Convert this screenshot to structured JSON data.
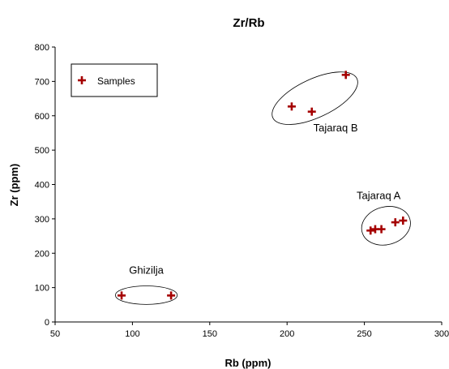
{
  "chart_data": {
    "type": "scatter",
    "title": "Zr/Rb",
    "xlabel": "Rb (ppm)",
    "ylabel": "Zr (ppm)",
    "xlim": [
      50,
      300
    ],
    "ylim": [
      0,
      800
    ],
    "xticks": [
      50,
      100,
      150,
      200,
      250,
      300
    ],
    "yticks": [
      0,
      100,
      200,
      300,
      400,
      500,
      600,
      700,
      800
    ],
    "grid": false,
    "legend": {
      "position": "top-left",
      "entries": [
        "Samples"
      ]
    },
    "series": [
      {
        "name": "Samples",
        "color": "#a50000",
        "marker": "plus",
        "points": [
          {
            "x": 93,
            "y": 77
          },
          {
            "x": 125,
            "y": 77
          },
          {
            "x": 203,
            "y": 627
          },
          {
            "x": 216,
            "y": 612
          },
          {
            "x": 238,
            "y": 719
          },
          {
            "x": 254,
            "y": 266
          },
          {
            "x": 257,
            "y": 270
          },
          {
            "x": 261,
            "y": 270
          },
          {
            "x": 270,
            "y": 290
          },
          {
            "x": 275,
            "y": 295
          }
        ]
      }
    ],
    "groups": [
      {
        "label": "Ghizilja",
        "cx": 109,
        "cy": 78,
        "rx": 20,
        "ry": 27,
        "angle": 0,
        "label_x": 109,
        "label_y": 140,
        "anchor": "middle"
      },
      {
        "label": "Tajaraq B",
        "cx": 218,
        "cy": 651,
        "rx": 30,
        "ry": 56,
        "angle": -25,
        "label_x": 217,
        "label_y": 555,
        "anchor": "start"
      },
      {
        "label": "Tajaraq A",
        "cx": 264,
        "cy": 280,
        "rx": 16,
        "ry": 55,
        "angle": -15,
        "label_x": 245,
        "label_y": 357,
        "anchor": "start"
      }
    ]
  },
  "colors": {
    "marker": "#a50000",
    "axis": "#000000",
    "ellipse": "#000000"
  }
}
